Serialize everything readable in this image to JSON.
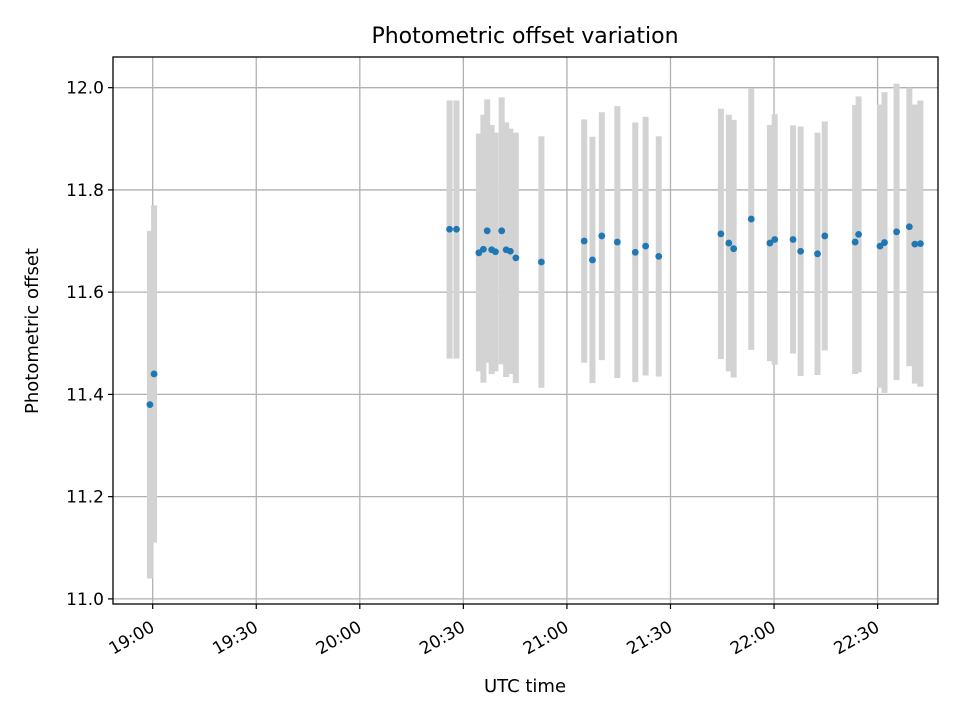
{
  "chart_data": {
    "type": "scatter",
    "title": "Photometric offset variation",
    "xlabel": "UTC time",
    "ylabel": "Photometric offset",
    "x_unit": "minutes after 19:00 UTC",
    "xlim": [
      -11.5,
      227.5
    ],
    "ylim": [
      10.99,
      12.06
    ],
    "xticks": [
      0,
      30,
      60,
      90,
      120,
      150,
      180,
      210
    ],
    "xtick_labels": [
      "19:00",
      "19:30",
      "20:00",
      "20:30",
      "21:00",
      "21:30",
      "22:00",
      "22:30"
    ],
    "yticks": [
      11.0,
      11.2,
      11.4,
      11.6,
      11.8,
      12.0
    ],
    "ytick_labels": [
      "11.0",
      "11.2",
      "11.4",
      "11.6",
      "11.8",
      "12.0"
    ],
    "grid": true,
    "marker_color": "#1f77b4",
    "errorbar_color": "#d3d3d3",
    "points": [
      {
        "x": -0.8,
        "y": 11.38,
        "lo": 11.04,
        "hi": 11.72
      },
      {
        "x": 0.4,
        "y": 11.44,
        "lo": 11.11,
        "hi": 11.77
      },
      {
        "x": 86.0,
        "y": 11.723,
        "lo": 11.47,
        "hi": 11.975
      },
      {
        "x": 88.0,
        "y": 11.723,
        "lo": 11.47,
        "hi": 11.975
      },
      {
        "x": 94.5,
        "y": 11.677,
        "lo": 11.445,
        "hi": 11.91
      },
      {
        "x": 95.8,
        "y": 11.684,
        "lo": 11.423,
        "hi": 11.947
      },
      {
        "x": 96.9,
        "y": 11.72,
        "lo": 11.462,
        "hi": 11.977
      },
      {
        "x": 98.2,
        "y": 11.683,
        "lo": 11.44,
        "hi": 11.927
      },
      {
        "x": 99.3,
        "y": 11.679,
        "lo": 11.445,
        "hi": 11.912
      },
      {
        "x": 101.1,
        "y": 11.72,
        "lo": 11.459,
        "hi": 11.981
      },
      {
        "x": 102.4,
        "y": 11.683,
        "lo": 11.434,
        "hi": 11.932
      },
      {
        "x": 103.6,
        "y": 11.68,
        "lo": 11.44,
        "hi": 11.92
      },
      {
        "x": 105.2,
        "y": 11.667,
        "lo": 11.422,
        "hi": 11.912
      },
      {
        "x": 112.6,
        "y": 11.659,
        "lo": 11.413,
        "hi": 11.905
      },
      {
        "x": 125.0,
        "y": 11.7,
        "lo": 11.462,
        "hi": 11.938
      },
      {
        "x": 127.4,
        "y": 11.663,
        "lo": 11.422,
        "hi": 11.904
      },
      {
        "x": 130.1,
        "y": 11.71,
        "lo": 11.467,
        "hi": 11.952
      },
      {
        "x": 134.6,
        "y": 11.698,
        "lo": 11.432,
        "hi": 11.964
      },
      {
        "x": 139.8,
        "y": 11.678,
        "lo": 11.424,
        "hi": 11.932
      },
      {
        "x": 142.8,
        "y": 11.69,
        "lo": 11.437,
        "hi": 11.943
      },
      {
        "x": 146.6,
        "y": 11.67,
        "lo": 11.435,
        "hi": 11.905
      },
      {
        "x": 164.6,
        "y": 11.714,
        "lo": 11.469,
        "hi": 11.959
      },
      {
        "x": 166.9,
        "y": 11.696,
        "lo": 11.445,
        "hi": 11.947
      },
      {
        "x": 168.3,
        "y": 11.685,
        "lo": 11.433,
        "hi": 11.937
      },
      {
        "x": 173.4,
        "y": 11.743,
        "lo": 11.487,
        "hi": 11.999
      },
      {
        "x": 178.8,
        "y": 11.696,
        "lo": 11.465,
        "hi": 11.927
      },
      {
        "x": 180.2,
        "y": 11.703,
        "lo": 11.458,
        "hi": 11.948
      },
      {
        "x": 185.5,
        "y": 11.703,
        "lo": 11.48,
        "hi": 11.926
      },
      {
        "x": 187.7,
        "y": 11.68,
        "lo": 11.436,
        "hi": 11.924
      },
      {
        "x": 192.6,
        "y": 11.675,
        "lo": 11.438,
        "hi": 11.912
      },
      {
        "x": 194.7,
        "y": 11.71,
        "lo": 11.486,
        "hi": 11.934
      },
      {
        "x": 203.5,
        "y": 11.698,
        "lo": 11.44,
        "hi": 11.966
      },
      {
        "x": 204.5,
        "y": 11.713,
        "lo": 11.443,
        "hi": 11.983
      },
      {
        "x": 210.7,
        "y": 11.69,
        "lo": 11.413,
        "hi": 11.967
      },
      {
        "x": 212.0,
        "y": 11.697,
        "lo": 11.403,
        "hi": 11.991
      },
      {
        "x": 215.5,
        "y": 11.718,
        "lo": 11.428,
        "hi": 12.008
      },
      {
        "x": 219.2,
        "y": 11.728,
        "lo": 11.455,
        "hi": 12.0
      },
      {
        "x": 220.8,
        "y": 11.694,
        "lo": 11.421,
        "hi": 11.967
      },
      {
        "x": 222.4,
        "y": 11.695,
        "lo": 11.415,
        "hi": 11.975
      }
    ]
  }
}
